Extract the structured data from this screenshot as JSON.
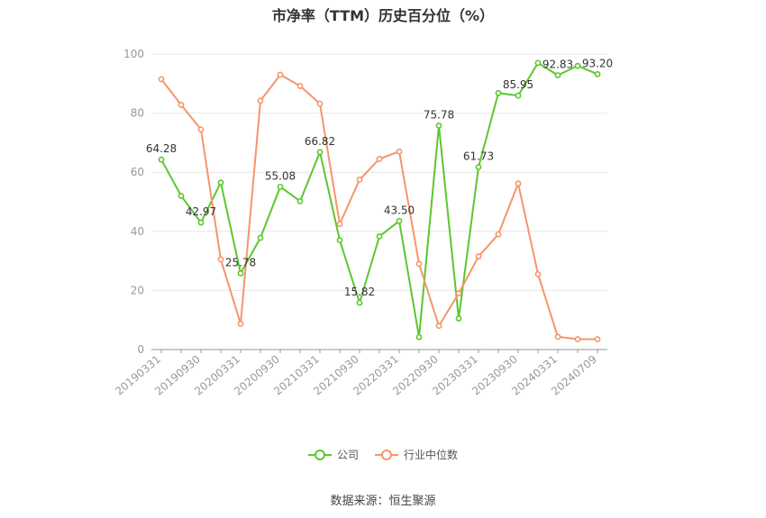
{
  "chart_data": {
    "type": "line",
    "title": "市净率（TTM）历史百分位（%）",
    "xlabel": "",
    "ylabel": "",
    "ylim": [
      0,
      100
    ],
    "yticks": [
      0,
      20,
      40,
      60,
      80,
      100
    ],
    "grid": true,
    "legend_position": "bottom",
    "x": [
      "20190331",
      "20190630",
      "20190930",
      "20191231",
      "20200331",
      "20200630",
      "20200930",
      "20201231",
      "20210331",
      "20210630",
      "20210930",
      "20211231",
      "20220331",
      "20220630",
      "20220930",
      "20221231",
      "20230331",
      "20230630",
      "20230930",
      "20231231",
      "20240331",
      "20240630",
      "20240709"
    ],
    "x_tick_labels": [
      "20190331",
      "20190930",
      "20200331",
      "20200930",
      "20210331",
      "20210930",
      "20220331",
      "20220930",
      "20230331",
      "20230930",
      "20240331",
      "20240709"
    ],
    "series": [
      {
        "name": "公司",
        "color": "#5cc72e",
        "values": [
          64.28,
          52.0,
          42.97,
          56.5,
          25.78,
          37.8,
          55.08,
          50.2,
          66.82,
          37.0,
          15.82,
          38.3,
          43.5,
          4.2,
          75.78,
          10.5,
          61.73,
          86.8,
          85.95,
          97.0,
          92.83,
          96.0,
          93.2
        ],
        "data_labels": {
          "0": "64.28",
          "2": "42.97",
          "4": "25.78",
          "6": "55.08",
          "8": "66.82",
          "10": "15.82",
          "12": "43.50",
          "14": "75.78",
          "16": "61.73",
          "18": "85.95",
          "20": "92.83",
          "22": "93.20"
        }
      },
      {
        "name": "行业中位数",
        "color": "#f5956b",
        "values": [
          91.5,
          82.8,
          74.5,
          30.5,
          8.7,
          84.2,
          93.0,
          89.2,
          83.2,
          42.5,
          57.5,
          64.5,
          67.0,
          29.0,
          8.0,
          19.0,
          31.5,
          39.0,
          56.2,
          25.5,
          4.3,
          3.5,
          3.5
        ]
      }
    ]
  },
  "source_text": "数据来源：恒生聚源"
}
